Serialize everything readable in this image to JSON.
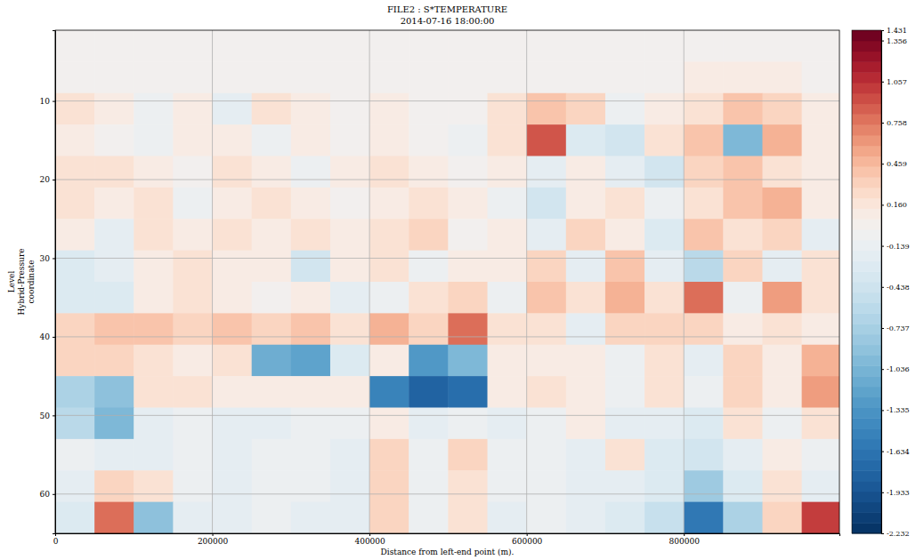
{
  "chart_data": {
    "type": "heatmap",
    "title": "FILE2 : S*TEMPERATURE",
    "subtitle": "2014-07-16 18:00:00",
    "xlabel": "Distance from left-end point (m).",
    "ylabel": [
      "Level",
      "Hybrid-Pressure",
      "coordinate"
    ],
    "xlim": [
      0,
      998000
    ],
    "ylim": [
      1,
      65
    ],
    "xticks": [
      0,
      200000,
      400000,
      600000,
      800000
    ],
    "yticks": [
      10,
      20,
      30,
      40,
      50,
      60
    ],
    "grid": true,
    "x_bins": [
      0,
      50000,
      100000,
      150000,
      200000,
      250000,
      300000,
      350000,
      400000,
      450000,
      500000,
      550000,
      600000,
      650000,
      700000,
      750000,
      800000,
      850000,
      900000,
      950000,
      1000000
    ],
    "y_bins": [
      1,
      5,
      9,
      13,
      17,
      21,
      25,
      29,
      33,
      37,
      41,
      45,
      49,
      53,
      57,
      61,
      65
    ],
    "values": [
      [
        0,
        0,
        0,
        0,
        0,
        0,
        0,
        0,
        0,
        0,
        0,
        0,
        0,
        0,
        0,
        0,
        0,
        0,
        0,
        0
      ],
      [
        0,
        0,
        0,
        0,
        0,
        0,
        0,
        0,
        0,
        0,
        0,
        0,
        0,
        0,
        0,
        0,
        0.1,
        0.1,
        0.1,
        0
      ],
      [
        0.2,
        0.1,
        -0.1,
        0.1,
        -0.2,
        0.2,
        0.1,
        0,
        0.1,
        0,
        0,
        0.2,
        0.4,
        0.3,
        -0.1,
        0.1,
        0.2,
        0.4,
        0.3,
        0.1
      ],
      [
        0.1,
        0,
        -0.1,
        0.1,
        0.1,
        -0.1,
        0.1,
        0,
        0.1,
        0,
        -0.1,
        0.2,
        0.9,
        -0.3,
        -0.4,
        0.2,
        0.4,
        -1.0,
        0.5,
        0.1
      ],
      [
        0.2,
        0.2,
        0.1,
        0,
        0.2,
        0.1,
        -0.1,
        0.1,
        0.2,
        0.1,
        0,
        0.1,
        -0.2,
        0.1,
        -0.2,
        -0.4,
        0.3,
        0.4,
        0.2,
        0.1
      ],
      [
        0.2,
        0.1,
        0.2,
        -0.1,
        0.1,
        0.2,
        0.1,
        0,
        0.1,
        0.2,
        0.1,
        -0.1,
        -0.4,
        0.1,
        0.2,
        -0.1,
        0.2,
        0.4,
        0.5,
        0.1
      ],
      [
        0.1,
        -0.2,
        0.2,
        0.1,
        0.2,
        0.1,
        0.2,
        0.1,
        0.2,
        0.3,
        0,
        0.1,
        -0.2,
        0.3,
        0.1,
        -0.3,
        0.4,
        0.2,
        0.3,
        -0.2
      ],
      [
        -0.3,
        -0.2,
        0.1,
        0.2,
        0.1,
        0.1,
        -0.4,
        0.1,
        0.2,
        -0.1,
        0.1,
        0.1,
        0.3,
        -0.2,
        0.4,
        -0.2,
        -0.6,
        0.3,
        -0.2,
        0.2
      ],
      [
        -0.3,
        -0.3,
        0.1,
        0.2,
        0.1,
        0,
        0.1,
        -0.2,
        -0.1,
        0.2,
        0.3,
        -0.1,
        0.4,
        0.2,
        0.5,
        0.2,
        0.8,
        -0.1,
        0.6,
        0.2
      ],
      [
        0.3,
        0.4,
        0.4,
        0.3,
        0.4,
        0.3,
        0.4,
        0.2,
        0.5,
        0.3,
        0.8,
        0.2,
        0.2,
        -0.2,
        0.3,
        0.3,
        0.3,
        0.1,
        0.2,
        0.1
      ],
      [
        0.3,
        0.3,
        0.2,
        0.1,
        0.2,
        -1.1,
        -1.2,
        -0.3,
        0.1,
        -1.3,
        -1.0,
        0.1,
        0.1,
        0.1,
        -0.1,
        0.2,
        -0.2,
        0.3,
        0.1,
        0.5
      ],
      [
        -0.7,
        -0.9,
        0.2,
        0.2,
        0.1,
        0.1,
        0.1,
        0.1,
        -1.5,
        -1.8,
        -1.7,
        0.1,
        0.2,
        0.1,
        -0.1,
        0.2,
        -0.1,
        0.3,
        0.1,
        0.6
      ],
      [
        -0.6,
        -1.0,
        -0.2,
        -0.1,
        -0.2,
        -0.2,
        -0.1,
        -0.1,
        0.1,
        -0.2,
        -0.1,
        -0.2,
        -0.1,
        0.1,
        -0.2,
        -0.2,
        -0.3,
        0.2,
        -0.1,
        0.2
      ],
      [
        -0.1,
        -0.2,
        -0.2,
        -0.1,
        -0.2,
        -0.1,
        -0.1,
        -0.2,
        0.3,
        -0.1,
        0.3,
        -0.1,
        -0.1,
        -0.2,
        0.2,
        -0.3,
        -0.4,
        -0.2,
        0.1,
        -0.1
      ],
      [
        -0.2,
        0.3,
        0.2,
        -0.1,
        -0.2,
        -0.1,
        -0.1,
        -0.2,
        0.3,
        -0.1,
        0.2,
        -0.1,
        -0.1,
        -0.2,
        -0.2,
        -0.3,
        -0.8,
        -0.3,
        0.2,
        -0.2
      ],
      [
        -0.3,
        0.8,
        -0.9,
        -0.2,
        -0.2,
        -0.1,
        -0.2,
        -0.2,
        0.3,
        -0.1,
        0.2,
        -0.2,
        -0.1,
        -0.2,
        -0.3,
        -0.5,
        -1.6,
        -0.7,
        0.3,
        1.0
      ]
    ],
    "colorbar": {
      "range": [
        -2.232,
        1.431
      ],
      "center": 0,
      "ticks": [
        1.431,
        1.356,
        1.057,
        0.758,
        0.459,
        {
          "value": 0.16,
          "label": "0.160"
        },
        -0.139,
        -0.438,
        -0.737,
        -1.036,
        -1.335,
        -1.634,
        -1.933,
        -2.232
      ]
    }
  }
}
